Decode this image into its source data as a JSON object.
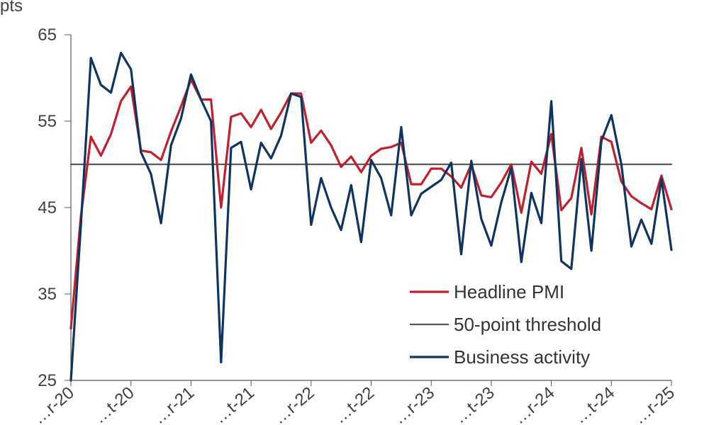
{
  "chart_data": {
    "type": "line",
    "ylabel": "pts",
    "ylim": [
      25,
      65
    ],
    "yticks": [
      25,
      35,
      45,
      55,
      65
    ],
    "xtick_labels": [
      "…r-20",
      "…t-20",
      "…r-21",
      "…t-21",
      "…r-22",
      "…t-22",
      "…r-23",
      "…t-23",
      "…r-24",
      "…t-24",
      "…r-25"
    ],
    "threshold": 50,
    "legend_position": "bottom-right",
    "series": [
      {
        "name": "Headline PMI",
        "color": "#c0202e",
        "values": [
          31.0,
          44.0,
          53.2,
          51.0,
          53.5,
          57.3,
          59.0,
          51.6,
          51.4,
          50.5,
          53.8,
          56.7,
          59.8,
          57.5,
          57.5,
          45.0,
          55.5,
          55.9,
          54.3,
          56.3,
          54.1,
          56.0,
          58.2,
          58.2,
          52.5,
          53.9,
          52.2,
          49.7,
          50.9,
          49.1,
          51.0,
          51.8,
          52.0,
          52.5,
          47.7,
          47.7,
          49.5,
          49.5,
          48.6,
          47.3,
          50.0,
          46.4,
          46.2,
          47.9,
          50.0,
          44.4,
          50.3,
          48.9,
          53.5,
          44.7,
          46.1,
          51.9,
          44.2,
          53.2,
          52.6,
          48.0,
          46.3,
          45.5,
          44.8,
          48.7,
          44.8
        ]
      },
      {
        "name": "50-point threshold",
        "color": "#5a5a5a",
        "values": [
          50,
          50
        ]
      },
      {
        "name": "Business activity",
        "color": "#0e3560",
        "values": [
          25.0,
          43.0,
          62.3,
          59.2,
          58.3,
          62.9,
          61.0,
          51.4,
          48.9,
          43.2,
          52.2,
          55.3,
          60.4,
          57.5,
          55.0,
          27.1,
          51.9,
          52.6,
          47.1,
          52.5,
          50.7,
          53.3,
          58.2,
          57.8,
          43.0,
          48.4,
          45.0,
          42.4,
          47.6,
          41.0,
          50.5,
          48.4,
          44.1,
          54.3,
          44.1,
          46.6,
          47.4,
          48.2,
          50.2,
          39.6,
          50.4,
          43.7,
          40.6,
          45.6,
          49.6,
          38.7,
          46.7,
          43.2,
          57.3,
          38.8,
          37.9,
          50.6,
          40.0,
          52.7,
          55.7,
          50.0,
          40.5,
          43.6,
          40.8,
          48.3,
          40.1
        ]
      }
    ]
  }
}
